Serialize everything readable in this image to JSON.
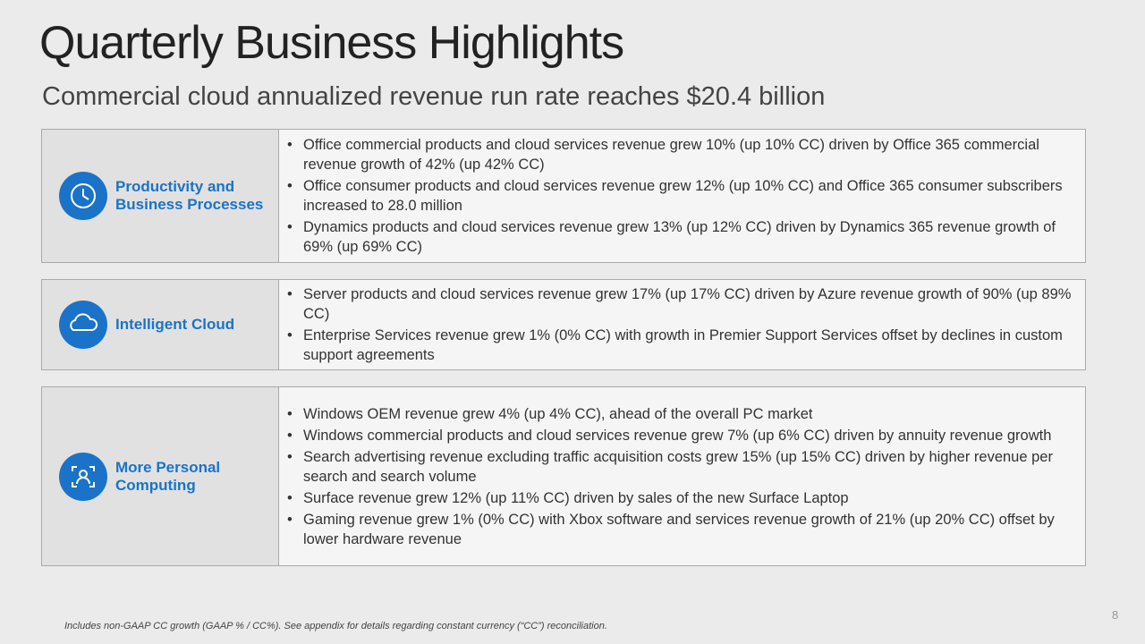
{
  "header": {
    "title": "Quarterly Business Highlights",
    "subtitle": "Commercial cloud annualized revenue run rate reaches $20.4 billion"
  },
  "sections": [
    {
      "label": "Productivity and Business Processes",
      "bullets": [
        "Office commercial products and cloud services revenue grew 10% (up 10% CC) driven by Office 365 commercial revenue growth of 42% (up 42% CC)",
        "Office consumer products and cloud services revenue grew 12% (up 10% CC) and Office 365 consumer subscribers increased to 28.0 million",
        "Dynamics products and cloud services revenue grew 13% (up 12% CC) driven by Dynamics 365 revenue growth of 69% (up 69% CC)"
      ]
    },
    {
      "label": "Intelligent Cloud",
      "bullets": [
        "Server products and cloud services revenue grew 17% (up 17% CC) driven by Azure revenue growth of 90% (up 89% CC)",
        "Enterprise Services revenue grew 1% (0% CC) with growth in Premier Support Services offset by declines in custom support agreements"
      ]
    },
    {
      "label": "More Personal Computing",
      "bullets": [
        "Windows OEM revenue grew 4% (up 4% CC), ahead of the overall PC market",
        "Windows commercial products and cloud services revenue grew 7% (up 6% CC) driven by annuity revenue growth",
        "Search advertising revenue excluding traffic acquisition costs grew 15% (up 15% CC) driven by higher revenue per search and search volume",
        "Surface revenue grew 12% (up 11% CC) driven by sales of the new Surface Laptop",
        "Gaming revenue grew 1% (0% CC) with Xbox software and services revenue growth of 21% (up 20% CC) offset by lower hardware revenue"
      ]
    }
  ],
  "footer": {
    "note": "Includes non-GAAP CC growth (GAAP % / CC%). See appendix for details regarding constant currency (“CC”) reconciliation.",
    "page": "8"
  }
}
